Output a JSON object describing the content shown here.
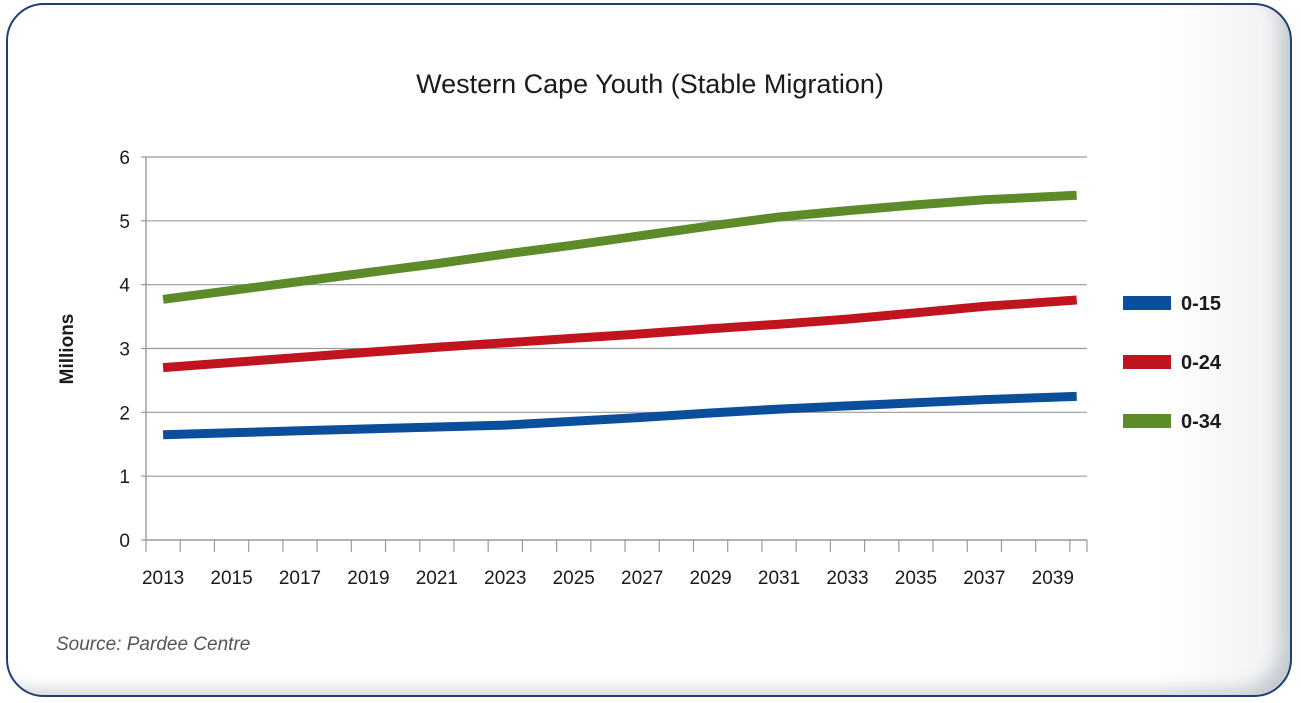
{
  "chart_data": {
    "type": "line",
    "title": "Western Cape Youth (Stable Migration)",
    "ylabel": "Millions",
    "xlabel": "",
    "ylim": [
      0,
      6
    ],
    "yticks": [
      "0",
      "1",
      "2",
      "3",
      "4",
      "5",
      "6"
    ],
    "xticks": [
      "2013",
      "2015",
      "2017",
      "2019",
      "2021",
      "2023",
      "2025",
      "2027",
      "2029",
      "2031",
      "2033",
      "2035",
      "2037",
      "2039"
    ],
    "x": [
      2013,
      2015,
      2017,
      2019,
      2021,
      2023,
      2025,
      2027,
      2029,
      2031,
      2033,
      2035,
      2037,
      2039
    ],
    "grid": true,
    "legend_position": "right",
    "series": [
      {
        "name": "0-15",
        "color": "#0b4e9b",
        "values": [
          1.65,
          1.68,
          1.71,
          1.74,
          1.77,
          1.8,
          1.86,
          1.92,
          1.99,
          2.05,
          2.1,
          2.15,
          2.2,
          2.25
        ]
      },
      {
        "name": "0-24",
        "color": "#c0141e",
        "values": [
          2.7,
          2.78,
          2.86,
          2.94,
          3.02,
          3.09,
          3.16,
          3.23,
          3.31,
          3.38,
          3.46,
          3.56,
          3.66,
          3.76
        ]
      },
      {
        "name": "0-34",
        "color": "#5e8b2a",
        "values": [
          3.77,
          3.91,
          4.05,
          4.19,
          4.33,
          4.48,
          4.62,
          4.77,
          4.92,
          5.06,
          5.16,
          5.25,
          5.33,
          5.4
        ]
      }
    ]
  },
  "source": "Source: Pardee Centre"
}
